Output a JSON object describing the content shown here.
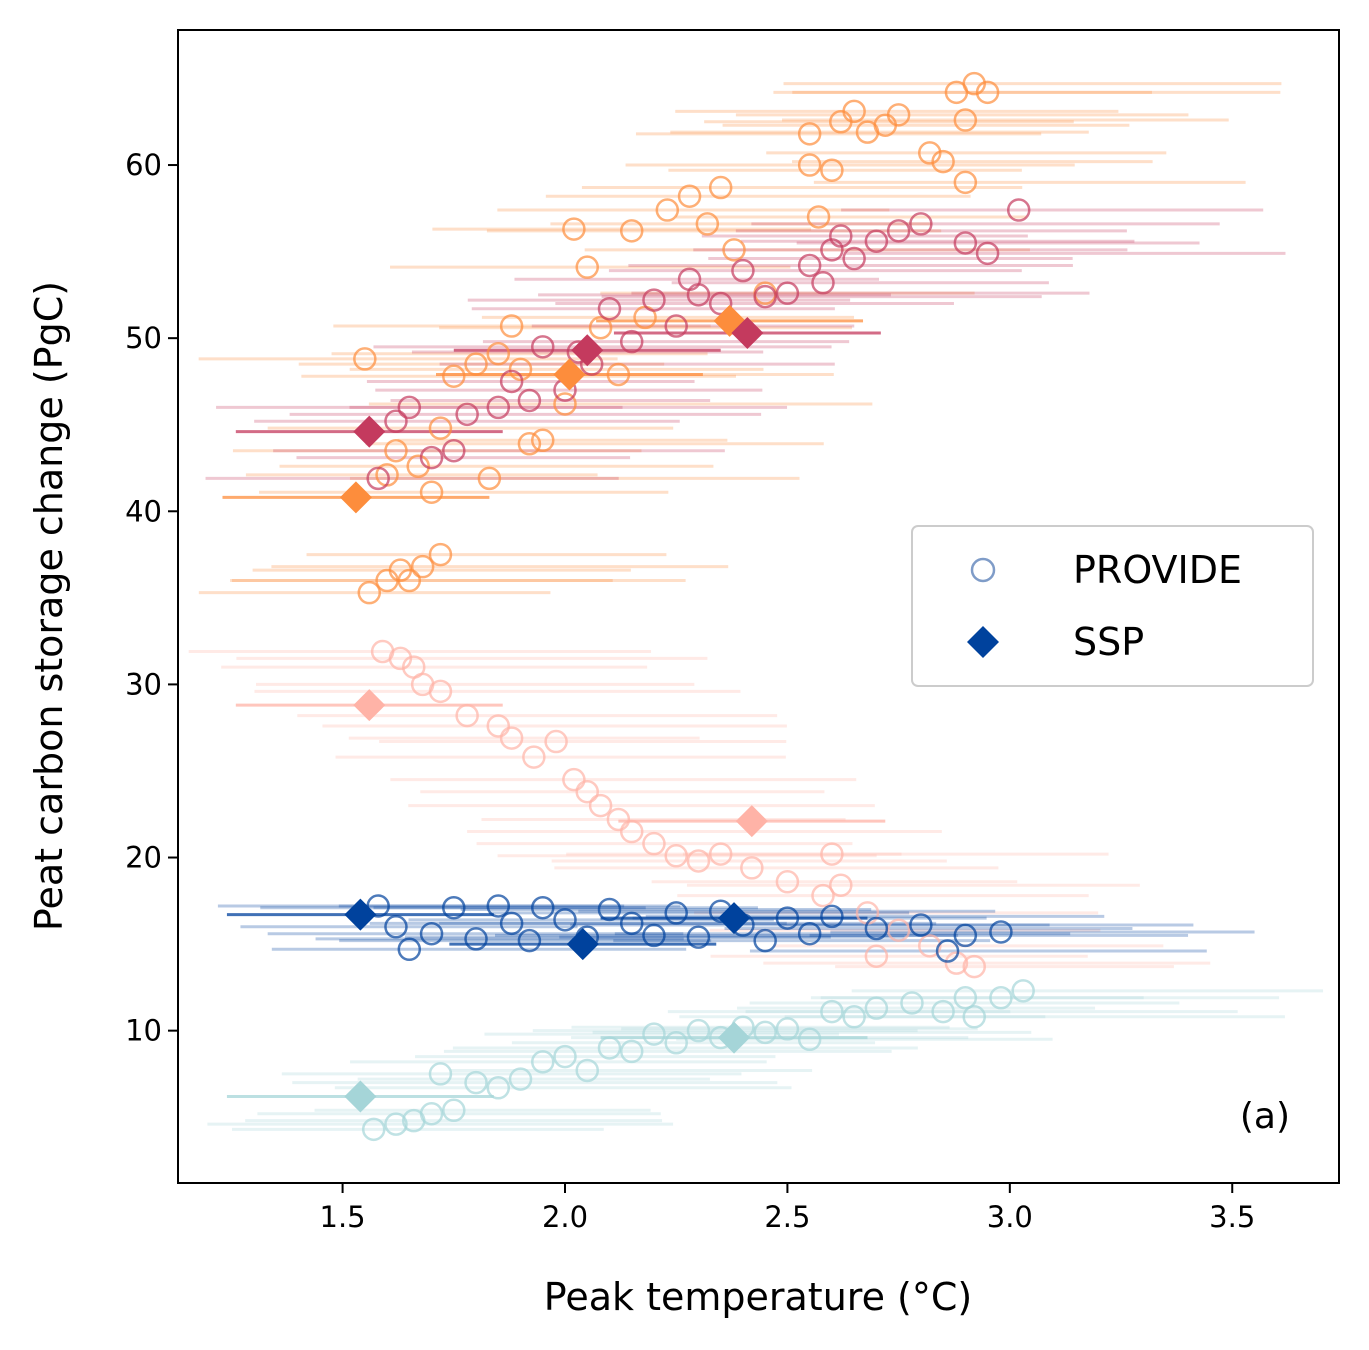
{
  "chart_data": {
    "type": "scatter",
    "xlabel": "Peak temperature (°C)",
    "ylabel": "Peat carbon storage change (PgC)",
    "xlim": [
      1.13,
      3.74
    ],
    "ylim": [
      1.2,
      67.8
    ],
    "xticks": [
      1.5,
      2.0,
      2.5,
      3.0,
      3.5
    ],
    "xtick_labels": [
      "1.5",
      "2.0",
      "2.5",
      "3.0",
      "3.5"
    ],
    "yticks": [
      10,
      20,
      30,
      40,
      50,
      60
    ],
    "ytick_labels": [
      "10",
      "20",
      "30",
      "40",
      "50",
      "60"
    ],
    "grid": false,
    "legend_position": "center-right",
    "annotation": "(a)",
    "legend": [
      {
        "label": "PROVIDE",
        "marker": "open-circle",
        "color": "#7f9cc8"
      },
      {
        "label": "SSP",
        "marker": "diamond",
        "color": "#00429d"
      }
    ],
    "series": [
      {
        "group": "orange",
        "color": "#fd8d3c",
        "provide": [
          [
            1.55,
            48.8
          ],
          [
            1.6,
            42.1
          ],
          [
            1.62,
            43.5
          ],
          [
            1.67,
            42.6
          ],
          [
            1.72,
            44.8
          ],
          [
            1.75,
            47.8
          ],
          [
            1.8,
            48.5
          ],
          [
            1.85,
            49.1
          ],
          [
            1.88,
            50.7
          ],
          [
            1.9,
            48.2
          ],
          [
            1.95,
            44.1
          ],
          [
            2.0,
            46.2
          ],
          [
            2.02,
            56.3
          ],
          [
            2.05,
            54.1
          ],
          [
            2.08,
            50.6
          ],
          [
            2.12,
            47.9
          ],
          [
            2.15,
            56.2
          ],
          [
            2.18,
            51.2
          ],
          [
            2.23,
            57.4
          ],
          [
            2.28,
            58.2
          ],
          [
            2.32,
            56.6
          ],
          [
            2.35,
            58.7
          ],
          [
            2.38,
            55.1
          ],
          [
            2.45,
            52.6
          ],
          [
            2.55,
            61.8
          ],
          [
            2.55,
            60.0
          ],
          [
            2.57,
            57.0
          ],
          [
            2.6,
            59.7
          ],
          [
            2.62,
            62.5
          ],
          [
            2.65,
            63.1
          ],
          [
            2.68,
            61.9
          ],
          [
            2.72,
            62.3
          ],
          [
            2.75,
            62.9
          ],
          [
            2.82,
            60.7
          ],
          [
            2.85,
            60.2
          ],
          [
            2.88,
            64.2
          ],
          [
            2.9,
            59.0
          ],
          [
            2.92,
            64.7
          ],
          [
            2.95,
            64.2
          ],
          [
            2.9,
            62.6
          ],
          [
            1.56,
            35.3
          ],
          [
            1.6,
            36.0
          ],
          [
            1.63,
            36.6
          ],
          [
            1.65,
            36.0
          ],
          [
            1.68,
            36.8
          ],
          [
            1.72,
            37.5
          ],
          [
            1.7,
            41.1
          ],
          [
            1.83,
            41.9
          ],
          [
            1.92,
            43.9
          ]
        ],
        "ssp": [
          [
            1.53,
            40.8
          ],
          [
            2.01,
            47.9
          ],
          [
            2.37,
            51.0
          ]
        ]
      },
      {
        "group": "crimson",
        "color": "#c43a5e",
        "provide": [
          [
            1.58,
            41.9
          ],
          [
            1.62,
            45.2
          ],
          [
            1.65,
            46.0
          ],
          [
            1.7,
            43.1
          ],
          [
            1.75,
            43.5
          ],
          [
            1.78,
            45.6
          ],
          [
            1.85,
            46.0
          ],
          [
            1.88,
            47.5
          ],
          [
            1.92,
            46.4
          ],
          [
            1.95,
            49.5
          ],
          [
            2.0,
            47.0
          ],
          [
            2.03,
            49.2
          ],
          [
            2.06,
            48.5
          ],
          [
            2.1,
            51.7
          ],
          [
            2.15,
            49.8
          ],
          [
            2.2,
            52.2
          ],
          [
            2.25,
            50.7
          ],
          [
            2.28,
            53.4
          ],
          [
            2.3,
            52.5
          ],
          [
            2.35,
            52.0
          ],
          [
            2.4,
            53.9
          ],
          [
            2.45,
            52.4
          ],
          [
            2.5,
            52.6
          ],
          [
            2.55,
            54.2
          ],
          [
            2.58,
            53.2
          ],
          [
            2.6,
            55.1
          ],
          [
            2.62,
            55.9
          ],
          [
            2.65,
            54.6
          ],
          [
            2.7,
            55.6
          ],
          [
            2.75,
            56.2
          ],
          [
            2.8,
            56.6
          ],
          [
            2.9,
            55.5
          ],
          [
            2.95,
            54.9
          ],
          [
            3.02,
            57.4
          ]
        ],
        "ssp": [
          [
            1.56,
            44.6
          ],
          [
            2.05,
            49.3
          ],
          [
            2.41,
            50.3
          ]
        ]
      },
      {
        "group": "pink",
        "color": "#ffb3a7",
        "provide": [
          [
            1.59,
            31.9
          ],
          [
            1.63,
            31.5
          ],
          [
            1.66,
            31.0
          ],
          [
            1.68,
            30.0
          ],
          [
            1.72,
            29.6
          ],
          [
            1.78,
            28.2
          ],
          [
            1.85,
            27.6
          ],
          [
            1.88,
            26.9
          ],
          [
            1.93,
            25.8
          ],
          [
            1.98,
            26.7
          ],
          [
            2.02,
            24.5
          ],
          [
            2.05,
            23.8
          ],
          [
            2.08,
            23.0
          ],
          [
            2.12,
            22.2
          ],
          [
            2.15,
            21.5
          ],
          [
            2.2,
            20.8
          ],
          [
            2.25,
            20.1
          ],
          [
            2.3,
            19.8
          ],
          [
            2.35,
            20.2
          ],
          [
            2.42,
            19.4
          ],
          [
            2.5,
            18.6
          ],
          [
            2.58,
            17.8
          ],
          [
            2.6,
            20.2
          ],
          [
            2.62,
            18.4
          ],
          [
            2.68,
            16.8
          ],
          [
            2.75,
            15.8
          ],
          [
            2.82,
            14.9
          ],
          [
            2.88,
            13.9
          ],
          [
            2.92,
            13.7
          ],
          [
            2.7,
            14.3
          ]
        ],
        "ssp": [
          [
            1.56,
            28.8
          ],
          [
            2.42,
            22.1
          ]
        ]
      },
      {
        "group": "blue",
        "color": "#00429d",
        "provide": [
          [
            1.58,
            17.2
          ],
          [
            1.62,
            16.0
          ],
          [
            1.65,
            14.7
          ],
          [
            1.7,
            15.6
          ],
          [
            1.75,
            17.1
          ],
          [
            1.8,
            15.3
          ],
          [
            1.85,
            17.2
          ],
          [
            1.88,
            16.2
          ],
          [
            1.92,
            15.2
          ],
          [
            1.95,
            17.1
          ],
          [
            2.0,
            16.4
          ],
          [
            2.05,
            15.4
          ],
          [
            2.1,
            17.0
          ],
          [
            2.15,
            16.2
          ],
          [
            2.2,
            15.5
          ],
          [
            2.25,
            16.8
          ],
          [
            2.3,
            15.4
          ],
          [
            2.35,
            16.9
          ],
          [
            2.4,
            16.1
          ],
          [
            2.45,
            15.2
          ],
          [
            2.5,
            16.5
          ],
          [
            2.55,
            15.6
          ],
          [
            2.6,
            16.6
          ],
          [
            2.7,
            15.9
          ],
          [
            2.8,
            16.1
          ],
          [
            2.86,
            14.6
          ],
          [
            2.9,
            15.5
          ],
          [
            2.98,
            15.7
          ]
        ],
        "ssp": [
          [
            1.54,
            16.7
          ],
          [
            2.04,
            15.0
          ],
          [
            2.38,
            16.5
          ]
        ]
      },
      {
        "group": "teal",
        "color": "#a5d5d8",
        "provide": [
          [
            1.57,
            4.3
          ],
          [
            1.62,
            4.6
          ],
          [
            1.66,
            4.8
          ],
          [
            1.7,
            5.2
          ],
          [
            1.75,
            5.4
          ],
          [
            1.72,
            7.5
          ],
          [
            1.8,
            7.0
          ],
          [
            1.85,
            6.7
          ],
          [
            1.9,
            7.2
          ],
          [
            1.95,
            8.2
          ],
          [
            2.0,
            8.5
          ],
          [
            2.05,
            7.7
          ],
          [
            2.1,
            9.0
          ],
          [
            2.15,
            8.8
          ],
          [
            2.2,
            9.8
          ],
          [
            2.25,
            9.3
          ],
          [
            2.3,
            10.0
          ],
          [
            2.35,
            9.6
          ],
          [
            2.4,
            10.2
          ],
          [
            2.45,
            9.9
          ],
          [
            2.5,
            10.1
          ],
          [
            2.55,
            9.5
          ],
          [
            2.6,
            11.1
          ],
          [
            2.65,
            10.8
          ],
          [
            2.7,
            11.3
          ],
          [
            2.78,
            11.6
          ],
          [
            2.85,
            11.1
          ],
          [
            2.9,
            11.9
          ],
          [
            2.92,
            10.8
          ],
          [
            2.98,
            11.9
          ],
          [
            3.03,
            12.3
          ]
        ],
        "ssp": [
          [
            1.54,
            6.2
          ],
          [
            2.38,
            9.6
          ]
        ]
      }
    ]
  }
}
